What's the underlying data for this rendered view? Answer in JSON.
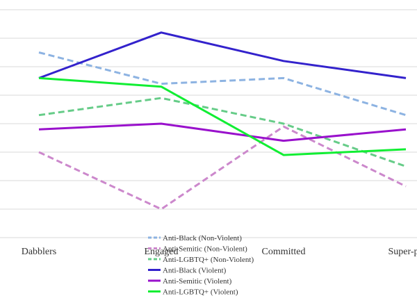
{
  "chart_data": {
    "type": "line",
    "title": "",
    "xlabel": "",
    "ylabel": "",
    "categories": [
      "Dabblers",
      "Engaged",
      "Committed",
      "Super-po"
    ],
    "ylim": [
      0,
      8
    ],
    "grid": true,
    "legend_position": "bottom",
    "series": [
      {
        "name": "Anti-Black (Non-Violent)",
        "values": [
          6.5,
          5.4,
          5.6,
          4.3
        ],
        "color": "#8db3e2",
        "dashed": true
      },
      {
        "name": "Anti-Semitic (Non-Violent)",
        "values": [
          3.0,
          1.0,
          3.9,
          1.8
        ],
        "color": "#cc88cc",
        "dashed": true
      },
      {
        "name": "Anti-LGBTQ+ (Non-Violent)",
        "values": [
          4.3,
          4.9,
          4.0,
          2.5
        ],
        "color": "#66cc88",
        "dashed": true
      },
      {
        "name": "Anti-Black (Violent)",
        "values": [
          5.6,
          7.2,
          6.2,
          5.6
        ],
        "color": "#3322cc",
        "dashed": false
      },
      {
        "name": "Anti-Semitic (Violent)",
        "values": [
          3.8,
          4.0,
          3.4,
          3.8
        ],
        "color": "#9911cc",
        "dashed": false
      },
      {
        "name": "Anti-LGBTQ+ (Violent)",
        "values": [
          5.6,
          5.3,
          2.9,
          3.1
        ],
        "color": "#11ee33",
        "dashed": false
      }
    ]
  }
}
